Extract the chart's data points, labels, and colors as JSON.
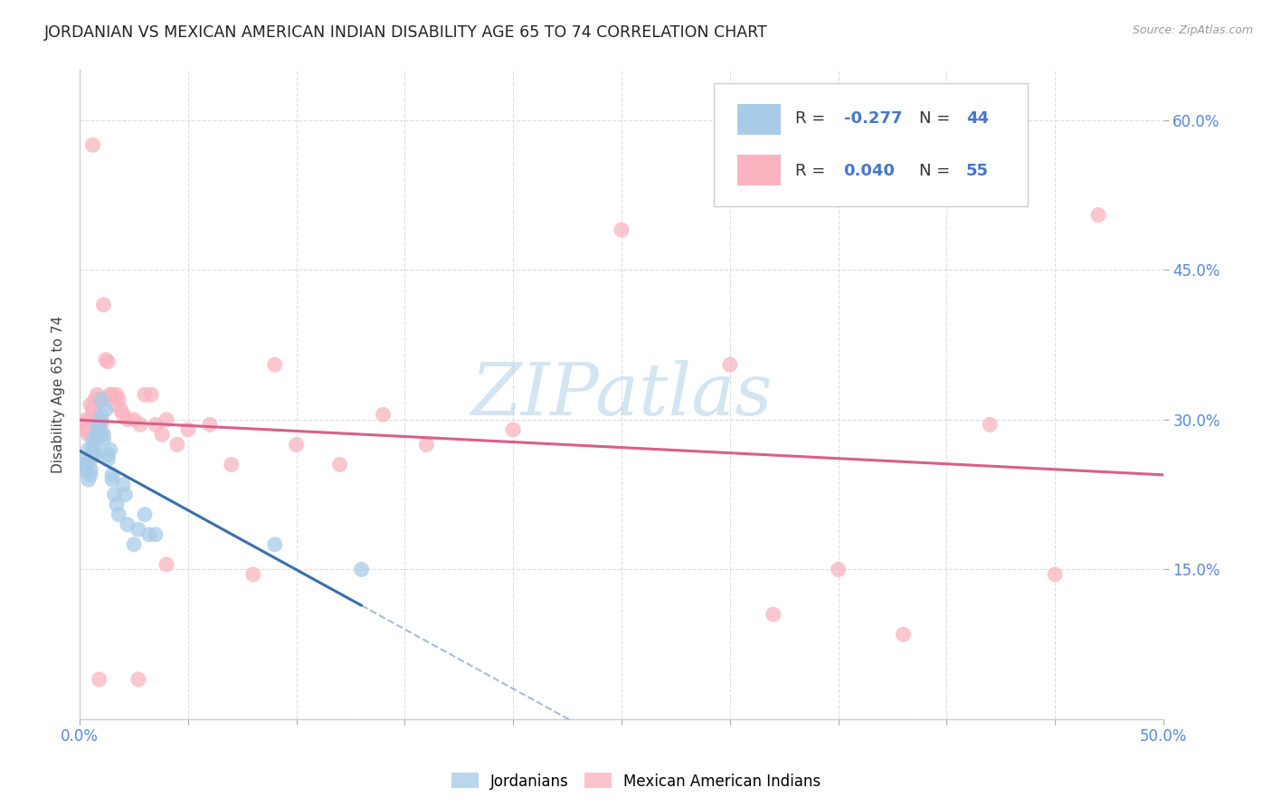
{
  "title": "JORDANIAN VS MEXICAN AMERICAN INDIAN DISABILITY AGE 65 TO 74 CORRELATION CHART",
  "source": "Source: ZipAtlas.com",
  "ylabel_label": "Disability Age 65 to 74",
  "xlim": [
    0.0,
    0.5
  ],
  "ylim": [
    0.0,
    0.65
  ],
  "xticks": [
    0.0,
    0.05,
    0.1,
    0.15,
    0.2,
    0.25,
    0.3,
    0.35,
    0.4,
    0.45,
    0.5
  ],
  "yticks": [
    0.0,
    0.15,
    0.3,
    0.45,
    0.6
  ],
  "x_label_ticks": [
    0.0,
    0.5
  ],
  "xticklabels_shown": {
    "0.0": "0.0%",
    "0.5": "50.0%"
  },
  "yticklabels_right": [
    "15.0%",
    "30.0%",
    "45.0%",
    "60.0%"
  ],
  "yticks_right": [
    0.15,
    0.3,
    0.45,
    0.6
  ],
  "legend_blue_r": "-0.277",
  "legend_blue_n": "44",
  "legend_pink_r": "0.040",
  "legend_pink_n": "55",
  "blue_scatter_color": "#a8cce8",
  "pink_scatter_color": "#f9b4c0",
  "blue_line_color": "#3a6faa",
  "pink_line_color": "#d95f8a",
  "watermark": "ZIPatlas",
  "watermark_color": "#b8d4ea",
  "legend_text_color": "#333333",
  "legend_value_color": "#4477cc",
  "tick_label_color": "#5588dd",
  "jordanians_x": [
    0.001,
    0.002,
    0.002,
    0.003,
    0.003,
    0.004,
    0.004,
    0.005,
    0.005,
    0.005,
    0.006,
    0.006,
    0.006,
    0.007,
    0.007,
    0.008,
    0.008,
    0.008,
    0.009,
    0.009,
    0.01,
    0.01,
    0.01,
    0.011,
    0.011,
    0.012,
    0.013,
    0.013,
    0.014,
    0.015,
    0.015,
    0.016,
    0.017,
    0.018,
    0.02,
    0.021,
    0.022,
    0.025,
    0.027,
    0.03,
    0.032,
    0.035,
    0.09,
    0.13
  ],
  "jordanians_y": [
    0.25,
    0.26,
    0.255,
    0.255,
    0.25,
    0.24,
    0.27,
    0.26,
    0.25,
    0.245,
    0.28,
    0.27,
    0.265,
    0.265,
    0.27,
    0.295,
    0.285,
    0.28,
    0.29,
    0.285,
    0.32,
    0.305,
    0.3,
    0.285,
    0.28,
    0.31,
    0.265,
    0.26,
    0.27,
    0.245,
    0.24,
    0.225,
    0.215,
    0.205,
    0.235,
    0.225,
    0.195,
    0.175,
    0.19,
    0.205,
    0.185,
    0.185,
    0.175,
    0.15
  ],
  "mexican_x": [
    0.001,
    0.002,
    0.003,
    0.004,
    0.005,
    0.005,
    0.006,
    0.007,
    0.007,
    0.008,
    0.008,
    0.009,
    0.01,
    0.01,
    0.011,
    0.012,
    0.013,
    0.014,
    0.015,
    0.016,
    0.017,
    0.018,
    0.019,
    0.02,
    0.022,
    0.025,
    0.028,
    0.03,
    0.033,
    0.035,
    0.038,
    0.04,
    0.045,
    0.05,
    0.06,
    0.07,
    0.08,
    0.09,
    0.1,
    0.12,
    0.14,
    0.16,
    0.2,
    0.25,
    0.3,
    0.32,
    0.35,
    0.38,
    0.42,
    0.45,
    0.47,
    0.006,
    0.009,
    0.027,
    0.04
  ],
  "mexican_y": [
    0.295,
    0.29,
    0.3,
    0.285,
    0.3,
    0.315,
    0.31,
    0.32,
    0.3,
    0.29,
    0.325,
    0.32,
    0.295,
    0.285,
    0.415,
    0.36,
    0.358,
    0.325,
    0.325,
    0.315,
    0.325,
    0.32,
    0.31,
    0.305,
    0.3,
    0.3,
    0.295,
    0.325,
    0.325,
    0.295,
    0.285,
    0.3,
    0.275,
    0.29,
    0.295,
    0.255,
    0.145,
    0.355,
    0.275,
    0.255,
    0.305,
    0.275,
    0.29,
    0.49,
    0.355,
    0.105,
    0.15,
    0.085,
    0.295,
    0.145,
    0.505,
    0.575,
    0.04,
    0.04,
    0.155
  ]
}
